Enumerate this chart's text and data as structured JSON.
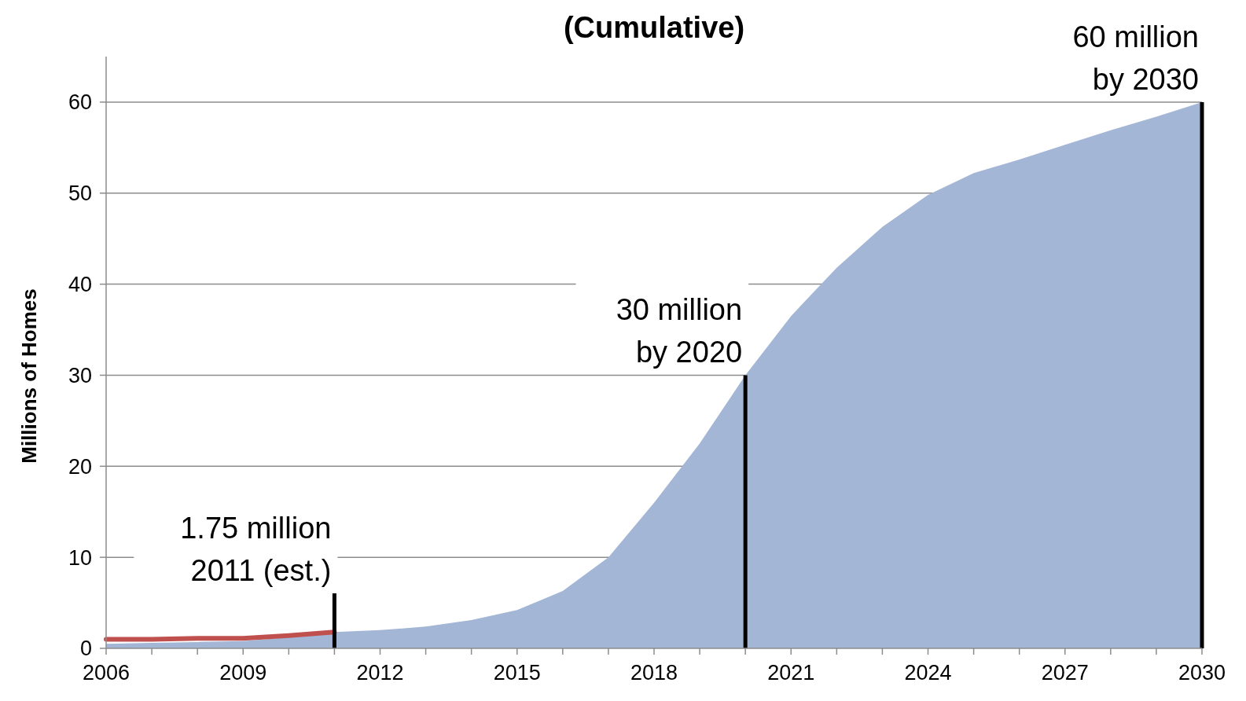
{
  "chart_data": {
    "type": "area",
    "title": "(Cumulative)",
    "ylabel": "Millions of Homes",
    "xlim": [
      2006,
      2030
    ],
    "xticks": [
      2006,
      {
        "value": 2007,
        "label": null
      },
      {
        "value": 2008,
        "label": null
      },
      2009,
      {
        "value": 2010,
        "label": null
      },
      {
        "value": 2011,
        "label": null
      },
      2012,
      {
        "value": 2013,
        "label": null
      },
      {
        "value": 2014,
        "label": null
      },
      2015,
      {
        "value": 2016,
        "label": null
      },
      {
        "value": 2017,
        "label": null
      },
      2018,
      {
        "value": 2019,
        "label": null
      },
      {
        "value": 2020,
        "label": null
      },
      2021,
      {
        "value": 2022,
        "label": null
      },
      {
        "value": 2023,
        "label": null
      },
      2024,
      {
        "value": 2025,
        "label": null
      },
      {
        "value": 2026,
        "label": null
      },
      2027,
      {
        "value": 2028,
        "label": null
      },
      {
        "value": 2029,
        "label": null
      },
      2030
    ],
    "ylim": [
      0,
      65
    ],
    "yticks": [
      0,
      10,
      20,
      30,
      40,
      50,
      60
    ],
    "grid": "y",
    "series": [
      {
        "color": "#a3b6d6",
        "x": [
          2006,
          2007,
          2008,
          2009,
          2010,
          2011,
          2012,
          2013,
          2014,
          2015,
          2016,
          2017,
          2018,
          2019,
          2020,
          2021,
          2022,
          2023,
          2024,
          2025,
          2026,
          2027,
          2028,
          2029,
          2030
        ],
        "values": [
          0.5,
          0.6,
          0.7,
          0.8,
          1.2,
          1.8,
          2.0,
          2.4,
          3.1,
          4.2,
          6.3,
          10,
          16,
          22.5,
          30,
          36.5,
          41.8,
          46.3,
          49.8,
          52.2,
          53.7,
          55.3,
          56.9,
          58.4,
          60
        ]
      },
      {
        "type": "line",
        "color": "#c0504d",
        "x": [
          2006,
          2007,
          2008,
          2009,
          2010,
          2011
        ],
        "values": [
          1.0,
          1.0,
          1.1,
          1.1,
          1.4,
          1.8
        ]
      }
    ],
    "annotations": [
      {
        "text": "1.75 million\n2011 (est.)",
        "x": 2011,
        "y": 1.8
      },
      {
        "text": "30 million\nby 2020",
        "x": 2020,
        "y": 30
      },
      {
        "text": "60 million\nby 2030",
        "x": 2030,
        "y": 60
      }
    ]
  }
}
